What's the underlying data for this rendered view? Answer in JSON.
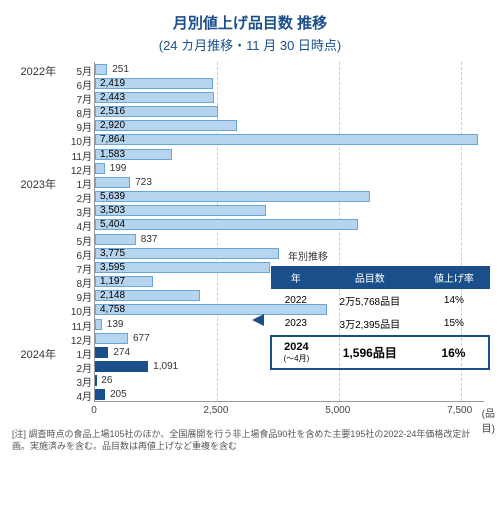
{
  "title": "月別値上げ品目数 推移",
  "subtitle": "(24 カ月推移・11 月 30 日時点)",
  "title_fontsize": 15,
  "subtitle_fontsize": 13,
  "chart": {
    "type": "bar",
    "orientation": "horizontal",
    "xlim": [
      0,
      8000
    ],
    "xtick_step": 2500,
    "xticks": [
      0,
      2500,
      5000,
      7500
    ],
    "x_unit": "(品目)",
    "bar_light": "#b6d4ee",
    "bar_light_border": "#6aa6d8",
    "bar_dark": "#1a4f8a",
    "background_color": "#ffffff",
    "grid_color": "#cccccc",
    "year_labels": [
      {
        "row": 0,
        "text": "2022年"
      },
      {
        "row": 8,
        "text": "2023年"
      },
      {
        "row": 20,
        "text": "2024年"
      }
    ],
    "rows": [
      {
        "month": "5月",
        "value": 251,
        "dark": false
      },
      {
        "month": "6月",
        "value": 2419,
        "dark": false
      },
      {
        "month": "7月",
        "value": 2443,
        "dark": false
      },
      {
        "month": "8月",
        "value": 2516,
        "dark": false
      },
      {
        "month": "9月",
        "value": 2920,
        "dark": false
      },
      {
        "month": "10月",
        "value": 7864,
        "dark": false
      },
      {
        "month": "11月",
        "value": 1583,
        "dark": false
      },
      {
        "month": "12月",
        "value": 199,
        "dark": false
      },
      {
        "month": "1月",
        "value": 723,
        "dark": false
      },
      {
        "month": "2月",
        "value": 5639,
        "dark": false
      },
      {
        "month": "3月",
        "value": 3503,
        "dark": false
      },
      {
        "month": "4月",
        "value": 5404,
        "dark": false
      },
      {
        "month": "5月",
        "value": 837,
        "dark": false
      },
      {
        "month": "6月",
        "value": 3775,
        "dark": false
      },
      {
        "month": "7月",
        "value": 3595,
        "dark": false
      },
      {
        "month": "8月",
        "value": 1197,
        "dark": false
      },
      {
        "month": "9月",
        "value": 2148,
        "dark": false
      },
      {
        "month": "10月",
        "value": 4758,
        "dark": false
      },
      {
        "month": "11月",
        "value": 139,
        "dark": false
      },
      {
        "month": "12月",
        "value": 677,
        "dark": false
      },
      {
        "month": "1月",
        "value": 274,
        "dark": true
      },
      {
        "month": "2月",
        "value": 1091,
        "dark": true
      },
      {
        "month": "3月",
        "value": 26,
        "dark": true
      },
      {
        "month": "4月",
        "value": 205,
        "dark": true
      }
    ]
  },
  "panel": {
    "title": "年別推移",
    "headers": [
      "年",
      "品目数",
      "値上げ率"
    ],
    "rows": [
      {
        "year": "2022",
        "items": "2万5,768品目",
        "rate": "14%"
      },
      {
        "year": "2023",
        "items": "3万2,395品目",
        "rate": "15%"
      }
    ],
    "highlight": {
      "year": "2024",
      "year_sub": "(～4月)",
      "items": "1,596品目",
      "rate": "16%"
    },
    "header_bg": "#1a4f8a",
    "header_color": "#ffffff"
  },
  "footnote": "[注] 調査時点の食品上場105社のほか、全国展開を行う非上場食品90社を含めた主要195社の2022-24年価格改定計画。実施済みを含む。品目数は再値上げなど重複を含む"
}
